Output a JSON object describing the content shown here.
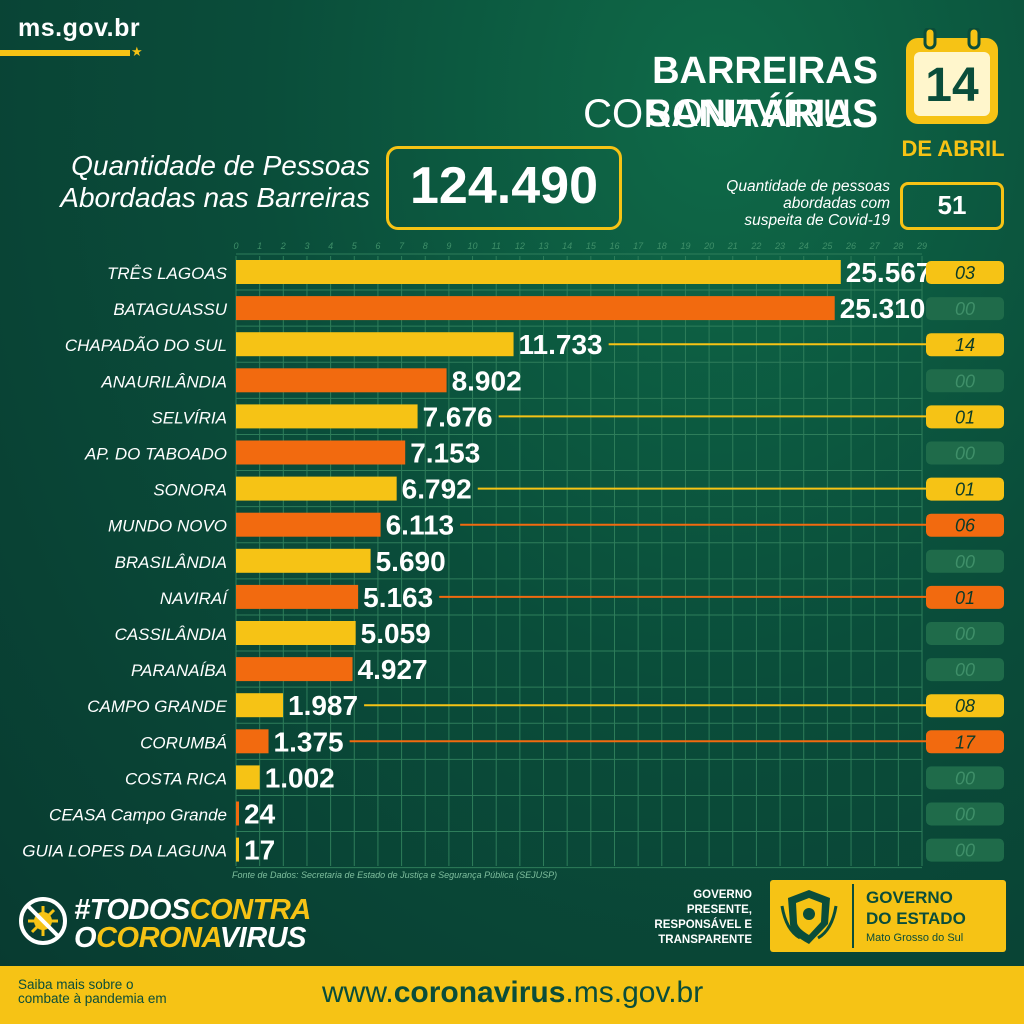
{
  "header": {
    "site": "ms.gov.br",
    "title_line1": "BARREIRAS SANITÁRIAS",
    "title_line2": "CORONAVÍRUS",
    "date_day": "14",
    "date_month": "DE ABRIL"
  },
  "summary": {
    "total_label_line1": "Quantidade de Pessoas",
    "total_label_line2": "Abordadas nas Barreiras",
    "total_value": "124.490",
    "suspect_label_line1": "Quantidade de pessoas",
    "suspect_label_line2": "abordadas com",
    "suspect_label_line3": "suspeita de Covid-19",
    "suspect_value": "51"
  },
  "chart_data": {
    "type": "bar",
    "orientation": "horizontal",
    "x_ticks": [
      "0",
      "1",
      "2",
      "3",
      "4",
      "5",
      "6",
      "7",
      "8",
      "9",
      "10",
      "11",
      "12",
      "13",
      "14",
      "15",
      "16",
      "17",
      "18",
      "19",
      "20",
      "21",
      "22",
      "23",
      "24",
      "25",
      "26",
      "27",
      "28",
      "29"
    ],
    "xlim": [
      0,
      29000
    ],
    "grid": true,
    "categories": [
      "TRÊS LAGOAS",
      "BATAGUASSU",
      "CHAPADÃO DO SUL",
      "ANAURILÂNDIA",
      "SELVÍRIA",
      "AP. DO TABOADO",
      "SONORA",
      "MUNDO NOVO",
      "BRASILÂNDIA",
      "NAVIRAÍ",
      "CASSILÂNDIA",
      "PARANAÍBA",
      "CAMPO GRANDE",
      "CORUMBÁ",
      "COSTA RICA",
      "CEASA Campo Grande",
      "GUIA LOPES DA LAGUNA"
    ],
    "values": [
      25567,
      25310,
      11733,
      8902,
      7676,
      7153,
      6792,
      6113,
      5690,
      5163,
      5059,
      4927,
      1987,
      1375,
      1002,
      24,
      17
    ],
    "value_labels": [
      "25.567",
      "25.310",
      "11.733",
      "8.902",
      "7.676",
      "7.153",
      "6.792",
      "6.113",
      "5.690",
      "5.163",
      "5.059",
      "4.927",
      "1.987",
      "1.375",
      "1.002",
      "24",
      "17"
    ],
    "suspects": [
      "03",
      "00",
      "14",
      "00",
      "01",
      "00",
      "01",
      "06",
      "00",
      "01",
      "00",
      "00",
      "08",
      "17",
      "00",
      "00",
      "00"
    ],
    "colors": {
      "yellow": "#f6c315",
      "orange": "#f26a0f",
      "zero_badge": "#1f6b4a"
    }
  },
  "source": "Fonte de Dados: Secretaria de Estado de Justiça e Segurança Pública (SEJUSP)",
  "campaign": {
    "hashtag_a1": "#TODOS",
    "hashtag_a2": "CONTRA",
    "hashtag_b1": "O",
    "hashtag_b2": "CORONA",
    "hashtag_b3": "VIRUS"
  },
  "government": {
    "slogan_line1": "GOVERNO",
    "slogan_line2": "PRESENTE,",
    "slogan_line3": "RESPONSÁVEL E",
    "slogan_line4": "TRANSPARENTE",
    "name_line1": "GOVERNO",
    "name_line2": "DO ESTADO",
    "name_line3": "Mato Grosso do Sul"
  },
  "footer": {
    "left_line1": "Saiba mais sobre o",
    "left_line2": "combate à pandemia em",
    "url_prefix": "www.",
    "url_bold": "coronavirus",
    "url_suffix": ".ms.gov.br"
  }
}
